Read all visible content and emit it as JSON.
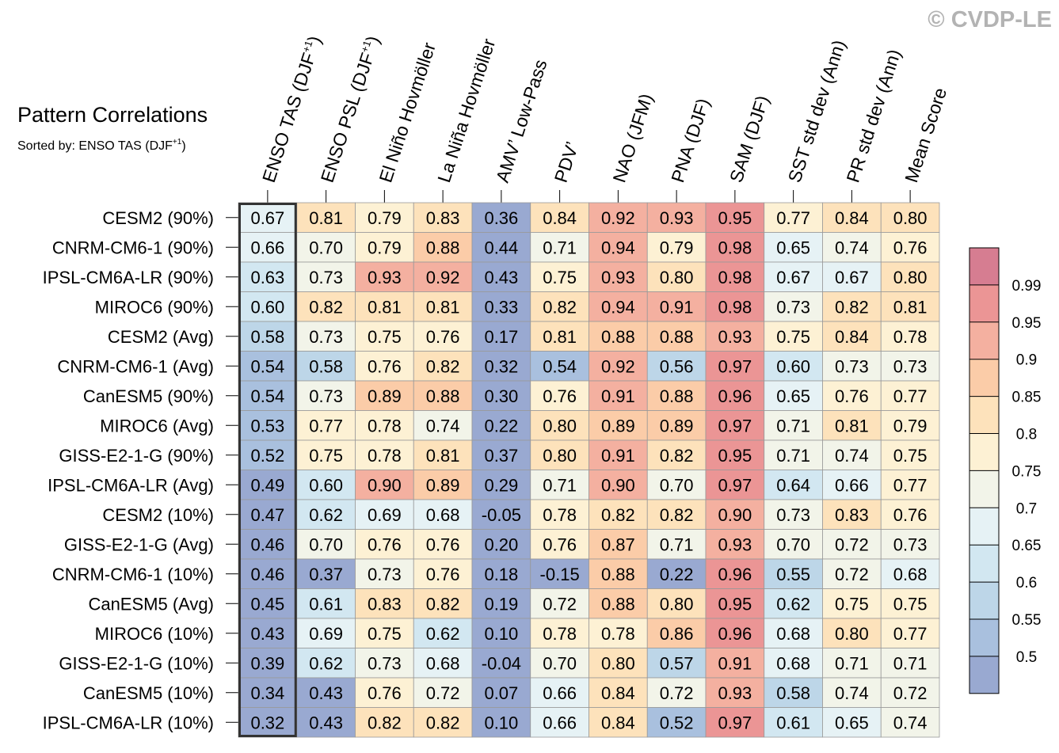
{
  "watermark": "© CVDP-LE",
  "chart_data": {
    "type": "heatmap",
    "title": "Pattern Correlations",
    "subtitle": {
      "text": "Sorted by: ENSO TAS (DJF",
      "sup": "+1",
      "end": ")"
    },
    "columns": [
      {
        "label": "ENSO TAS (DJF",
        "sup": "+1",
        "end": ")"
      },
      {
        "label": "ENSO PSL (DJF",
        "sup": "+1",
        "end": ")"
      },
      {
        "label": "El Niño Hovmöller"
      },
      {
        "label": "La Niña Hovmöller"
      },
      {
        "label": "AMV’ Low-Pass"
      },
      {
        "label": "PDV’"
      },
      {
        "label": "NAO (JFM)"
      },
      {
        "label": "PNA (DJF)"
      },
      {
        "label": "SAM (DJF)"
      },
      {
        "label": "SST std dev (Ann)"
      },
      {
        "label": "PR std dev (Ann)"
      },
      {
        "label": "Mean Score"
      }
    ],
    "sorted_column_index": 0,
    "rows": [
      "CESM2 (90%)",
      "CNRM-CM6-1 (90%)",
      "IPSL-CM6A-LR (90%)",
      "MIROC6 (90%)",
      "CESM2 (Avg)",
      "CNRM-CM6-1 (Avg)",
      "CanESM5 (90%)",
      "MIROC6 (Avg)",
      "GISS-E2-1-G (90%)",
      "IPSL-CM6A-LR (Avg)",
      "CESM2 (10%)",
      "GISS-E2-1-G (Avg)",
      "CNRM-CM6-1 (10%)",
      "CanESM5 (Avg)",
      "MIROC6 (10%)",
      "GISS-E2-1-G (10%)",
      "CanESM5 (10%)",
      "IPSL-CM6A-LR (10%)"
    ],
    "values": [
      [
        "0.67",
        "0.81",
        "0.79",
        "0.83",
        "0.36",
        "0.84",
        "0.92",
        "0.93",
        "0.95",
        "0.77",
        "0.84",
        "0.80"
      ],
      [
        "0.66",
        "0.70",
        "0.79",
        "0.88",
        "0.44",
        "0.71",
        "0.94",
        "0.79",
        "0.98",
        "0.65",
        "0.74",
        "0.76"
      ],
      [
        "0.63",
        "0.73",
        "0.93",
        "0.92",
        "0.43",
        "0.75",
        "0.93",
        "0.80",
        "0.98",
        "0.67",
        "0.67",
        "0.80"
      ],
      [
        "0.60",
        "0.82",
        "0.81",
        "0.81",
        "0.33",
        "0.82",
        "0.94",
        "0.91",
        "0.98",
        "0.73",
        "0.82",
        "0.81"
      ],
      [
        "0.58",
        "0.73",
        "0.75",
        "0.76",
        "0.17",
        "0.81",
        "0.88",
        "0.88",
        "0.93",
        "0.75",
        "0.84",
        "0.78"
      ],
      [
        "0.54",
        "0.58",
        "0.76",
        "0.82",
        "0.32",
        "0.54",
        "0.92",
        "0.56",
        "0.97",
        "0.60",
        "0.73",
        "0.73"
      ],
      [
        "0.54",
        "0.73",
        "0.89",
        "0.88",
        "0.30",
        "0.76",
        "0.91",
        "0.88",
        "0.96",
        "0.65",
        "0.76",
        "0.77"
      ],
      [
        "0.53",
        "0.77",
        "0.78",
        "0.74",
        "0.22",
        "0.80",
        "0.89",
        "0.89",
        "0.97",
        "0.71",
        "0.81",
        "0.79"
      ],
      [
        "0.52",
        "0.75",
        "0.78",
        "0.81",
        "0.37",
        "0.80",
        "0.91",
        "0.82",
        "0.95",
        "0.71",
        "0.74",
        "0.75"
      ],
      [
        "0.49",
        "0.60",
        "0.90",
        "0.89",
        "0.29",
        "0.71",
        "0.90",
        "0.70",
        "0.97",
        "0.64",
        "0.66",
        "0.77"
      ],
      [
        "0.47",
        "0.62",
        "0.69",
        "0.68",
        "-0.05",
        "0.78",
        "0.82",
        "0.82",
        "0.90",
        "0.73",
        "0.83",
        "0.76"
      ],
      [
        "0.46",
        "0.70",
        "0.76",
        "0.76",
        "0.20",
        "0.76",
        "0.87",
        "0.71",
        "0.93",
        "0.70",
        "0.72",
        "0.73"
      ],
      [
        "0.46",
        "0.37",
        "0.73",
        "0.76",
        "0.18",
        "-0.15",
        "0.88",
        "0.22",
        "0.96",
        "0.55",
        "0.72",
        "0.68"
      ],
      [
        "0.45",
        "0.61",
        "0.83",
        "0.82",
        "0.19",
        "0.72",
        "0.88",
        "0.80",
        "0.95",
        "0.62",
        "0.75",
        "0.75"
      ],
      [
        "0.43",
        "0.69",
        "0.75",
        "0.62",
        "0.10",
        "0.78",
        "0.78",
        "0.86",
        "0.96",
        "0.68",
        "0.80",
        "0.77"
      ],
      [
        "0.39",
        "0.62",
        "0.73",
        "0.68",
        "-0.04",
        "0.70",
        "0.80",
        "0.57",
        "0.91",
        "0.68",
        "0.71",
        "0.71"
      ],
      [
        "0.34",
        "0.43",
        "0.76",
        "0.72",
        "0.07",
        "0.66",
        "0.84",
        "0.72",
        "0.93",
        "0.58",
        "0.74",
        "0.72"
      ],
      [
        "0.32",
        "0.43",
        "0.82",
        "0.82",
        "0.10",
        "0.66",
        "0.84",
        "0.52",
        "0.97",
        "0.61",
        "0.65",
        "0.74"
      ]
    ],
    "colorbar": {
      "levels": [
        0.5,
        0.55,
        0.6,
        0.65,
        0.7,
        0.75,
        0.8,
        0.85,
        0.9,
        0.95,
        0.99
      ],
      "labels": [
        "0.5",
        "0.55",
        "0.6",
        "0.65",
        "0.7",
        "0.75",
        "0.8",
        "0.85",
        "0.9",
        "0.95",
        "0.99"
      ],
      "colors": [
        "#99a9d1",
        "#a9c0de",
        "#bdd6e8",
        "#d2e7f1",
        "#e6f2f5",
        "#f2f4e9",
        "#fdf1d4",
        "#fde2bb",
        "#fbcca8",
        "#f4b0a0",
        "#eb9595",
        "#d67d91"
      ]
    }
  }
}
